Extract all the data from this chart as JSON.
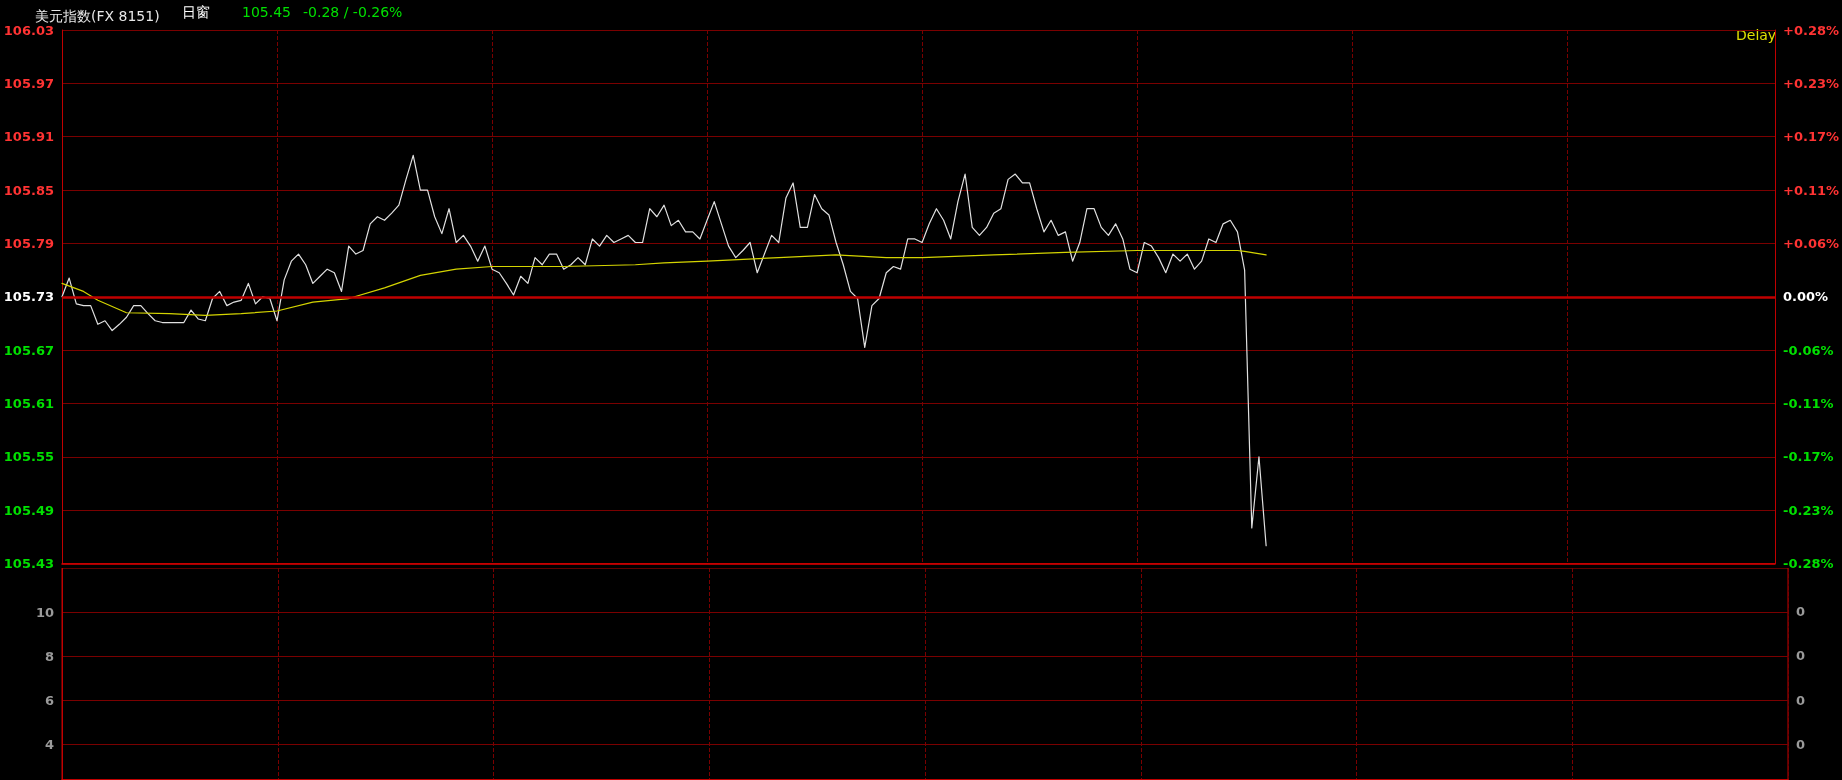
{
  "chart_data": [
    {
      "type": "line",
      "title": "美元指数(FX 8151)",
      "annotations": [
        "日窗",
        "105.45",
        "-0.28 / -0.26%",
        "Delay"
      ],
      "categories": [
        null,
        null,
        null,
        null,
        null,
        null,
        null,
        null,
        null,
        null,
        null,
        null,
        null,
        null,
        null,
        null,
        null,
        null,
        null,
        null,
        null,
        null,
        null,
        null,
        null,
        null,
        null,
        null,
        null,
        null,
        null,
        null,
        null,
        null,
        null,
        null,
        null,
        null,
        null,
        null,
        null,
        null,
        null,
        null,
        null,
        null,
        null,
        null,
        null,
        null,
        null,
        null,
        null,
        null,
        null,
        null,
        null,
        null,
        null,
        null,
        null,
        null,
        null,
        null,
        null,
        null,
        null,
        null,
        null,
        null,
        null,
        null,
        null,
        null,
        null,
        null,
        null,
        null,
        null,
        null,
        null,
        null,
        null,
        null,
        null,
        null,
        null,
        null,
        null,
        null,
        null,
        null,
        null,
        null,
        null,
        null,
        null,
        null,
        null,
        null,
        null,
        null,
        null,
        null,
        null,
        null,
        null,
        null,
        null,
        null,
        null,
        null,
        null,
        null,
        null,
        null,
        null,
        null,
        null,
        null,
        null,
        null,
        null,
        null,
        null,
        null,
        null,
        null,
        null,
        null,
        null,
        null,
        null,
        null,
        null,
        null,
        null,
        null,
        null,
        null,
        null,
        null,
        null,
        null,
        null,
        null,
        null,
        null,
        null,
        null,
        null,
        null,
        null,
        null,
        null,
        null,
        null,
        null,
        null,
        null,
        null,
        null,
        null,
        null,
        null,
        null,
        null,
        null,
        null,
        null,
        null,
        null,
        null,
        null,
        null,
        null,
        null,
        null,
        null,
        null,
        null,
        null,
        null,
        null,
        null,
        null,
        null,
        null,
        null,
        null,
        null,
        null,
        null,
        null,
        null,
        null,
        null,
        null,
        null,
        null,
        null,
        null,
        null,
        null,
        null,
        null,
        null,
        null,
        null,
        null,
        null,
        null,
        null,
        null,
        null,
        null,
        null,
        null,
        null,
        null,
        null,
        null,
        null,
        null,
        null,
        null,
        null,
        null,
        null,
        null,
        null,
        null,
        null,
        null,
        null,
        null,
        null,
        null,
        null,
        null
      ],
      "series": [
        {
          "color": "#e0e0e0",
          "values": [
            105.73,
            105.751,
            105.722,
            105.72,
            105.72,
            105.699,
            105.703,
            105.692,
            105.699,
            105.707,
            105.72,
            105.72,
            105.711,
            105.703,
            105.701,
            105.701,
            105.701,
            105.701,
            105.715,
            105.705,
            105.703,
            105.728,
            105.736,
            105.72,
            105.724,
            105.726,
            105.745,
            105.722,
            105.73,
            105.728,
            105.703,
            105.749,
            105.77,
            105.778,
            105.766,
            105.745,
            105.753,
            105.761,
            105.757,
            105.736,
            105.787,
            105.778,
            105.782,
            105.812,
            105.82,
            105.816,
            105.824,
            105.833,
            105.862,
            105.889,
            105.85,
            105.85,
            105.82,
            105.801,
            105.829,
            105.791,
            105.799,
            105.787,
            105.77,
            105.787,
            105.761,
            105.757,
            105.745,
            105.732,
            105.753,
            105.745,
            105.774,
            105.766,
            105.778,
            105.778,
            105.761,
            105.766,
            105.774,
            105.766,
            105.795,
            105.787,
            105.799,
            105.791,
            105.795,
            105.799,
            105.791,
            105.791,
            105.829,
            105.82,
            105.833,
            105.81,
            105.816,
            105.803,
            105.803,
            105.795,
            105.816,
            105.837,
            105.812,
            105.787,
            105.774,
            105.782,
            105.791,
            105.757,
            105.778,
            105.799,
            105.791,
            105.841,
            105.858,
            105.808,
            105.808,
            105.845,
            105.829,
            105.822,
            105.791,
            105.766,
            105.736,
            105.728,
            105.673,
            105.72,
            105.728,
            105.757,
            105.764,
            105.761,
            105.795,
            105.795,
            105.791,
            105.812,
            105.829,
            105.816,
            105.795,
            105.837,
            105.868,
            105.808,
            105.799,
            105.808,
            105.824,
            105.829,
            105.862,
            105.868,
            105.858,
            105.858,
            105.829,
            105.803,
            105.816,
            105.799,
            105.803,
            105.77,
            105.791,
            105.829,
            105.829,
            105.808,
            105.799,
            105.812,
            105.795,
            105.761,
            105.757,
            105.791,
            105.787,
            105.774,
            105.757,
            105.778,
            105.77,
            105.778,
            105.761,
            105.77,
            105.795,
            105.791,
            105.812,
            105.816,
            105.803,
            105.76,
            105.47,
            105.55,
            105.45,
            null,
            null,
            null,
            null,
            null,
            null,
            null,
            null,
            null,
            null,
            null,
            null,
            null,
            null,
            null,
            null,
            null,
            null,
            null,
            null,
            null,
            null,
            null,
            null,
            null,
            null,
            null,
            null,
            null,
            null,
            null,
            null,
            null,
            null,
            null,
            null,
            null,
            null,
            null,
            null,
            null,
            null,
            null,
            null,
            null,
            null,
            null,
            null,
            null,
            null,
            null,
            null,
            null,
            null,
            null,
            null,
            null,
            null,
            null,
            null,
            null,
            null,
            null,
            null,
            null,
            null,
            null,
            null,
            null,
            null,
            null
          ]
        },
        {
          "color": "#d4d400",
          "values": [
            105.745,
            null,
            null,
            105.736,
            null,
            105.726,
            null,
            null,
            null,
            105.712,
            null,
            null,
            null,
            null,
            null,
            105.711,
            null,
            null,
            null,
            null,
            105.709,
            null,
            null,
            null,
            null,
            105.711,
            null,
            null,
            null,
            null,
            105.714,
            null,
            null,
            null,
            null,
            105.724,
            null,
            null,
            null,
            null,
            105.728,
            null,
            null,
            null,
            null,
            105.74,
            null,
            null,
            null,
            null,
            105.754,
            null,
            null,
            null,
            null,
            105.761,
            null,
            null,
            null,
            null,
            105.764,
            null,
            null,
            null,
            null,
            null,
            null,
            null,
            null,
            null,
            105.764,
            null,
            null,
            null,
            null,
            null,
            null,
            null,
            null,
            null,
            105.766,
            null,
            null,
            null,
            105.768,
            null,
            null,
            null,
            null,
            null,
            105.77,
            null,
            null,
            null,
            null,
            null,
            null,
            null,
            null,
            null,
            105.774,
            null,
            null,
            null,
            null,
            null,
            null,
            null,
            105.777,
            null,
            null,
            null,
            null,
            null,
            null,
            105.774,
            null,
            null,
            null,
            null,
            105.774,
            null,
            null,
            null,
            null,
            null,
            null,
            null,
            null,
            null,
            105.777,
            null,
            null,
            null,
            null,
            null,
            null,
            null,
            null,
            null,
            105.78,
            null,
            null,
            null,
            null,
            null,
            null,
            null,
            null,
            null,
            105.782,
            null,
            null,
            null,
            null,
            null,
            null,
            null,
            null,
            null,
            null,
            null,
            null,
            null,
            105.782,
            105.781,
            null,
            null,
            105.777,
            null,
            null,
            null,
            null,
            null,
            null,
            null,
            null,
            null,
            null,
            null,
            null,
            null,
            null,
            null,
            null,
            null,
            null,
            null,
            null,
            null,
            null,
            null,
            null,
            null,
            null,
            null,
            null,
            null,
            null,
            null,
            null,
            null,
            null,
            null,
            null,
            null,
            null,
            null,
            null,
            null,
            null,
            null,
            null,
            null,
            null,
            null,
            null,
            null,
            null,
            null,
            null,
            null,
            null,
            null,
            null,
            null,
            null,
            null,
            null,
            null,
            null,
            null,
            null,
            null,
            null,
            null,
            null,
            null,
            null,
            null
          ]
        }
      ],
      "ylim": [
        105.43,
        106.03
      ],
      "yticks": [
        106.03,
        105.97,
        105.91,
        105.85,
        105.79,
        105.73,
        105.67,
        105.61,
        105.55,
        105.49,
        105.43
      ],
      "y2lim": [
        -0.2837,
        0.2837
      ],
      "y2ticks": [
        {
          "value": 0.2837,
          "label": "+0.28%"
        },
        {
          "value": 0.227,
          "label": "+0.23%"
        },
        {
          "value": 0.1702,
          "label": "+0.17%"
        },
        {
          "value": 0.1135,
          "label": "+0.11%"
        },
        {
          "value": 0.0567,
          "label": "+0.06%"
        },
        {
          "value": 0,
          "label": "0.00%"
        },
        {
          "value": -0.0567,
          "label": "-0.06%"
        },
        {
          "value": -0.1135,
          "label": "-0.11%"
        },
        {
          "value": -0.1702,
          "label": "-0.17%"
        },
        {
          "value": -0.227,
          "label": "-0.23%"
        },
        {
          "value": -0.2837,
          "label": "-0.28%"
        }
      ],
      "ref_lines": [
        {
          "axis": "y",
          "value": 105.73,
          "color": "#c00000"
        }
      ],
      "grid": true,
      "tick_labels": "y"
    },
    {
      "type": "bar",
      "categories": [
        null,
        null,
        null,
        null,
        null,
        null,
        null,
        null
      ],
      "values": [
        null,
        null,
        null,
        null,
        null,
        null,
        null,
        null
      ],
      "ylim": [
        2.4,
        12
      ],
      "yticks": [
        10,
        8,
        6,
        4
      ],
      "annotations": [
        "0",
        "0",
        "0",
        "0"
      ],
      "grid": true,
      "tick_labels": "y"
    }
  ]
}
